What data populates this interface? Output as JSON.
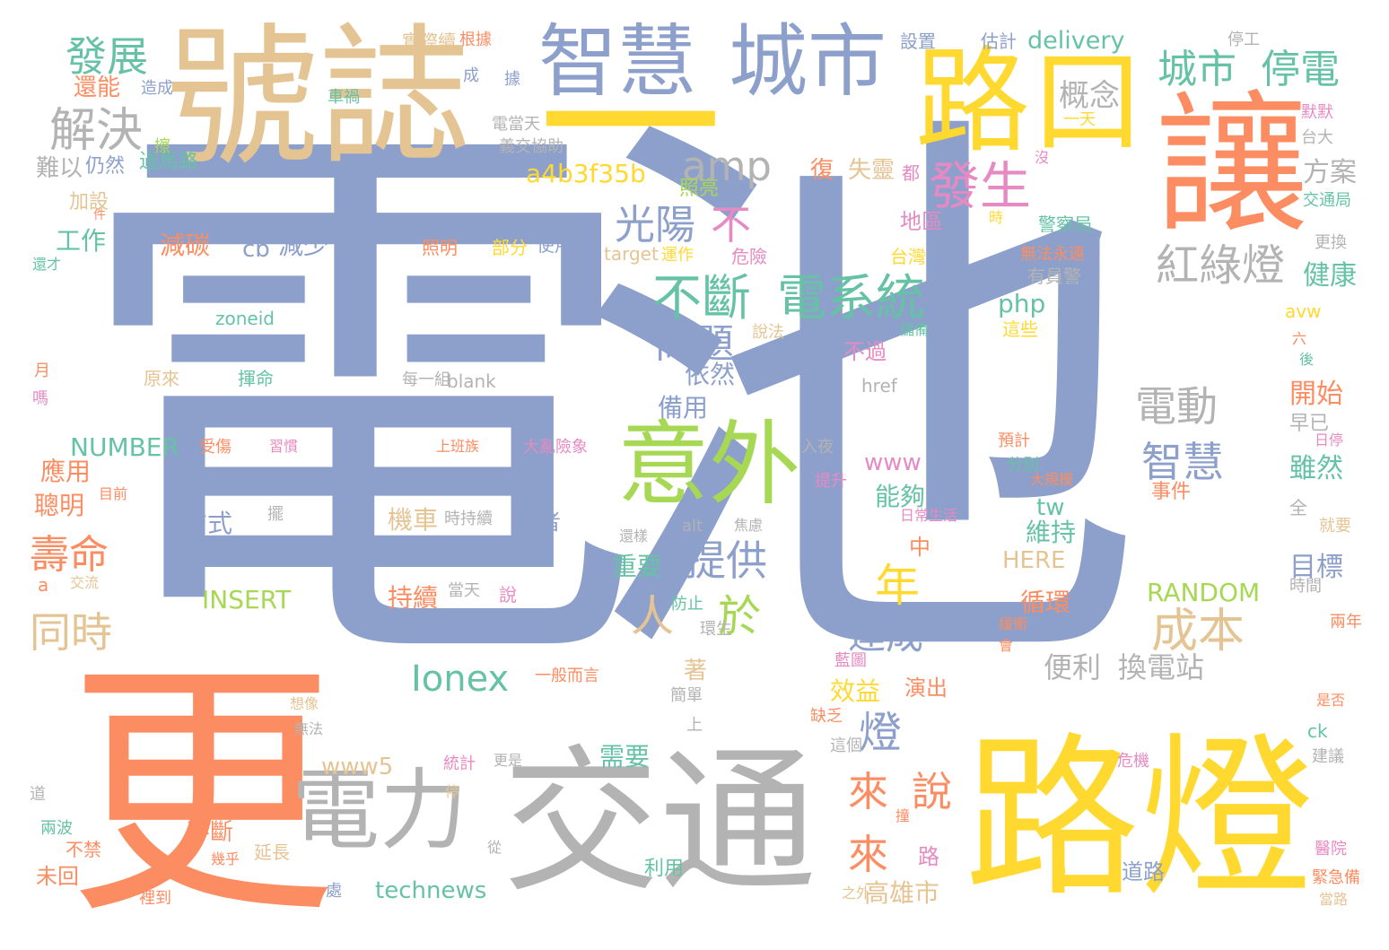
{
  "palette": {
    "blue": "#8da0cb",
    "orange": "#fc8d62",
    "green": "#66c2a5",
    "pink": "#e78ac3",
    "lime": "#a6d854",
    "yellow": "#ffd92f",
    "tan": "#e5c494",
    "gray": "#b3b3b3"
  },
  "words": [
    {
      "text": "電池",
      "color": "#8da0cb"
    },
    {
      "text": "更",
      "color": "#fc8d62"
    },
    {
      "text": "號誌",
      "color": "#e5c494"
    },
    {
      "text": "一",
      "color": "#ffd92f"
    },
    {
      "text": "路燈",
      "color": "#ffd92f"
    },
    {
      "text": "交通",
      "color": "#b3b3b3"
    },
    {
      "text": "讓",
      "color": "#fc8d62"
    },
    {
      "text": "智慧",
      "color": "#8da0cb"
    },
    {
      "text": "城市",
      "color": "#8da0cb"
    },
    {
      "text": "路口",
      "color": "#ffd92f"
    },
    {
      "text": "電力",
      "color": "#b3b3b3"
    },
    {
      "text": "意外",
      "color": "#a6d854"
    },
    {
      "text": "不斷",
      "color": "#66c2a5"
    },
    {
      "text": "電系統",
      "color": "#66c2a5"
    },
    {
      "text": "發生",
      "color": "#e78ac3"
    },
    {
      "text": "光陽",
      "color": "#8da0cb"
    },
    {
      "text": "不",
      "color": "#e78ac3"
    },
    {
      "text": "amp",
      "color": "#b3b3b3"
    },
    {
      "text": "城市",
      "color": "#66c2a5"
    },
    {
      "text": "停電",
      "color": "#66c2a5"
    },
    {
      "text": "紅綠燈",
      "color": "#b3b3b3"
    },
    {
      "text": "解決",
      "color": "#b3b3b3"
    },
    {
      "text": "發展",
      "color": "#66c2a5"
    },
    {
      "text": "概念",
      "color": "#b3b3b3"
    },
    {
      "text": "問題",
      "color": "#8da0cb"
    },
    {
      "text": "電動",
      "color": "#b3b3b3"
    },
    {
      "text": "智慧",
      "color": "#8da0cb"
    },
    {
      "text": "成本",
      "color": "#e5c494"
    },
    {
      "text": "年",
      "color": "#ffd92f"
    },
    {
      "text": "人",
      "color": "#e5c494"
    },
    {
      "text": "於",
      "color": "#a6d854"
    },
    {
      "text": "提供",
      "color": "#8da0cb"
    },
    {
      "text": "Ionex",
      "color": "#66c2a5"
    },
    {
      "text": "達成",
      "color": "#8da0cb"
    },
    {
      "text": "便利",
      "color": "#b3b3b3"
    },
    {
      "text": "換電站",
      "color": "#b3b3b3"
    },
    {
      "text": "壽命",
      "color": "#fc8d62"
    },
    {
      "text": "同時",
      "color": "#e5c494"
    },
    {
      "text": "燈",
      "color": "#8da0cb"
    },
    {
      "text": "來",
      "color": "#fc8d62"
    },
    {
      "text": "說",
      "color": "#fc8d62"
    },
    {
      "text": "來",
      "color": "#fc8d62"
    },
    {
      "text": "高雄市",
      "color": "#e5c494"
    },
    {
      "text": "方案",
      "color": "#b3b3b3"
    },
    {
      "text": "健康",
      "color": "#66c2a5"
    },
    {
      "text": "開始",
      "color": "#fc8d62"
    },
    {
      "text": "雖然",
      "color": "#66c2a5"
    },
    {
      "text": "目標",
      "color": "#8da0cb"
    },
    {
      "text": "a4b3f35b",
      "color": "#ffd92f"
    },
    {
      "text": "delivery",
      "color": "#66c2a5"
    },
    {
      "text": "NUMBER",
      "color": "#66c2a5"
    },
    {
      "text": "INSERT",
      "color": "#a6d854"
    },
    {
      "text": "RANDOM",
      "color": "#a6d854"
    },
    {
      "text": "technews",
      "color": "#66c2a5"
    },
    {
      "text": "www5",
      "color": "#e5c494"
    },
    {
      "text": "HERE",
      "color": "#e5c494"
    },
    {
      "text": "php",
      "color": "#66c2a5"
    },
    {
      "text": "www",
      "color": "#e78ac3"
    },
    {
      "text": "tw",
      "color": "#66c2a5"
    },
    {
      "text": "cb",
      "color": "#8da0cb"
    },
    {
      "text": "減碳",
      "color": "#fc8d62"
    },
    {
      "text": "減少",
      "color": "#8da0cb"
    },
    {
      "text": "工作",
      "color": "#66c2a5"
    },
    {
      "text": "應用",
      "color": "#fc8d62"
    },
    {
      "text": "聰明",
      "color": "#fc8d62"
    },
    {
      "text": "方式",
      "color": "#8da0cb"
    },
    {
      "text": "機車",
      "color": "#e5c494"
    },
    {
      "text": "持續",
      "color": "#fc8d62"
    },
    {
      "text": "重要",
      "color": "#66c2a5"
    },
    {
      "text": "依然",
      "color": "#8da0cb"
    },
    {
      "text": "備用",
      "color": "#8da0cb"
    },
    {
      "text": "能夠",
      "color": "#66c2a5"
    },
    {
      "text": "維持",
      "color": "#66c2a5"
    },
    {
      "text": "循環",
      "color": "#fc8d62"
    },
    {
      "text": "效益",
      "color": "#ffd92f"
    },
    {
      "text": "需要",
      "color": "#66c2a5"
    },
    {
      "text": "失靈",
      "color": "#e5c494"
    },
    {
      "text": "還能",
      "color": "#fc8d62"
    },
    {
      "text": "難以",
      "color": "#b3b3b3"
    },
    {
      "text": "仍然",
      "color": "#8da0cb"
    },
    {
      "text": "border",
      "color": "#e5c494"
    },
    {
      "text": "zoneid",
      "color": "#66c2a5"
    },
    {
      "text": "blank",
      "color": "#b3b3b3"
    },
    {
      "text": "target",
      "color": "#e5c494"
    },
    {
      "text": "危險",
      "color": "#e78ac3"
    },
    {
      "text": "照亮",
      "color": "#a6d854"
    },
    {
      "text": "照明",
      "color": "#fc8d62"
    },
    {
      "text": "部分",
      "color": "#ffd92f"
    },
    {
      "text": "使用者",
      "color": "#8da0cb"
    },
    {
      "text": "運作",
      "color": "#ffd92f"
    },
    {
      "text": "台灣",
      "color": "#ffd92f"
    },
    {
      "text": "警察局",
      "color": "#66c2a5"
    },
    {
      "text": "這些",
      "color": "#ffd92f"
    },
    {
      "text": "不過",
      "color": "#e78ac3"
    },
    {
      "text": "href",
      "color": "#b3b3b3"
    },
    {
      "text": "img",
      "color": "#66c2a5"
    },
    {
      "text": "src",
      "color": "#8da0cb"
    },
    {
      "text": "avw",
      "color": "#ffd92f"
    },
    {
      "text": "ck",
      "color": "#66c2a5"
    },
    {
      "text": "alt",
      "color": "#b3b3b3"
    },
    {
      "text": "n",
      "color": "#ffd92f"
    },
    {
      "text": "a",
      "color": "#fc8d62"
    },
    {
      "text": "實際續",
      "color": "#e5c494"
    },
    {
      "text": "過馬路",
      "color": "#66c2a5"
    },
    {
      "text": "未回",
      "color": "#fc8d62"
    },
    {
      "text": "根據",
      "color": "#fc8d62"
    },
    {
      "text": "設置",
      "color": "#8da0cb"
    },
    {
      "text": "估計",
      "color": "#8da0cb"
    },
    {
      "text": "停工",
      "color": "#b3b3b3"
    },
    {
      "text": "默默",
      "color": "#e78ac3"
    },
    {
      "text": "台大",
      "color": "#b3b3b3"
    },
    {
      "text": "交通局",
      "color": "#66c2a5"
    },
    {
      "text": "更換",
      "color": "#b3b3b3"
    },
    {
      "text": "都",
      "color": "#e78ac3"
    },
    {
      "text": "沒",
      "color": "#e78ac3"
    },
    {
      "text": "時",
      "color": "#ffd92f"
    },
    {
      "text": "復",
      "color": "#fc8d62"
    },
    {
      "text": "地區",
      "color": "#e78ac3"
    },
    {
      "text": "無法永遠",
      "color": "#fc8d62"
    },
    {
      "text": "有員警",
      "color": "#b3b3b3"
    },
    {
      "text": "說法",
      "color": "#e5c494"
    },
    {
      "text": "原來",
      "color": "#e5c494"
    },
    {
      "text": "揮命",
      "color": "#66c2a5"
    },
    {
      "text": "每一組",
      "color": "#b3b3b3"
    },
    {
      "text": "月",
      "color": "#fc8d62"
    },
    {
      "text": "嗎",
      "color": "#e78ac3"
    },
    {
      "text": "還才",
      "color": "#66c2a5"
    },
    {
      "text": "加設",
      "color": "#e5c494"
    },
    {
      "text": "件",
      "color": "#fc8d62"
    },
    {
      "text": "擦",
      "color": "#a6d854"
    },
    {
      "text": "成",
      "color": "#8da0cb"
    },
    {
      "text": "據",
      "color": "#8da0cb"
    },
    {
      "text": "造成",
      "color": "#8da0cb"
    },
    {
      "text": "車禍",
      "color": "#66c2a5"
    },
    {
      "text": "電當天",
      "color": "#b3b3b3"
    },
    {
      "text": "義交協助",
      "color": "#b3b3b3"
    },
    {
      "text": "受傷",
      "color": "#fc8d62"
    },
    {
      "text": "習慣",
      "color": "#e78ac3"
    },
    {
      "text": "上班族",
      "color": "#fc8d62"
    },
    {
      "text": "大亂險象",
      "color": "#e78ac3"
    },
    {
      "text": "入夜",
      "color": "#b3b3b3"
    },
    {
      "text": "提升",
      "color": "#e78ac3"
    },
    {
      "text": "預計",
      "color": "#fc8d62"
    },
    {
      "text": "大規模",
      "color": "#fc8d62"
    },
    {
      "text": "事件",
      "color": "#fc8d62"
    },
    {
      "text": "日停",
      "color": "#e78ac3"
    },
    {
      "text": "全",
      "color": "#b3b3b3"
    },
    {
      "text": "就要",
      "color": "#e5c494"
    },
    {
      "text": "時間",
      "color": "#b3b3b3"
    },
    {
      "text": "兩年",
      "color": "#fc8d62"
    },
    {
      "text": "是否",
      "color": "#fc8d62"
    },
    {
      "text": "建議",
      "color": "#b3b3b3"
    },
    {
      "text": "醫院",
      "color": "#e78ac3"
    },
    {
      "text": "緊急備",
      "color": "#fc8d62"
    },
    {
      "text": "當路",
      "color": "#e5c494"
    },
    {
      "text": "危機",
      "color": "#e78ac3"
    },
    {
      "text": "缺乏",
      "color": "#fc8d62"
    },
    {
      "text": "這個",
      "color": "#b3b3b3"
    },
    {
      "text": "上",
      "color": "#b3b3b3"
    },
    {
      "text": "簡單",
      "color": "#b3b3b3"
    },
    {
      "text": "著",
      "color": "#e5c494"
    },
    {
      "text": "演出",
      "color": "#fc8d62"
    },
    {
      "text": "藍圖",
      "color": "#e78ac3"
    },
    {
      "text": "環生",
      "color": "#b3b3b3"
    },
    {
      "text": "防止",
      "color": "#66c2a5"
    },
    {
      "text": "說",
      "color": "#e78ac3"
    },
    {
      "text": "當天",
      "color": "#b3b3b3"
    },
    {
      "text": "時持續",
      "color": "#b3b3b3"
    },
    {
      "text": "業者",
      "color": "#8da0cb"
    },
    {
      "text": "擺",
      "color": "#b3b3b3"
    },
    {
      "text": "還樣",
      "color": "#b3b3b3"
    },
    {
      "text": "焦慮",
      "color": "#b3b3b3"
    },
    {
      "text": "中",
      "color": "#fc8d62"
    },
    {
      "text": "日常生活",
      "color": "#e78ac3"
    },
    {
      "text": "儲備",
      "color": "#66c2a5"
    },
    {
      "text": "分別",
      "color": "#66c2a5"
    },
    {
      "text": "緩衝",
      "color": "#fc8d62"
    },
    {
      "text": "會",
      "color": "#fc8d62"
    },
    {
      "text": "六",
      "color": "#fc8d62"
    },
    {
      "text": "後",
      "color": "#66c2a5"
    },
    {
      "text": "早已",
      "color": "#b3b3b3"
    },
    {
      "text": "一天",
      "color": "#ffd92f"
    },
    {
      "text": "目前",
      "color": "#fc8d62"
    },
    {
      "text": "交流",
      "color": "#e5c494"
    },
    {
      "text": "一般而言",
      "color": "#fc8d62"
    },
    {
      "text": "想像",
      "color": "#e5c494"
    },
    {
      "text": "無法",
      "color": "#b3b3b3"
    },
    {
      "text": "更是",
      "color": "#b3b3b3"
    },
    {
      "text": "統計",
      "color": "#e78ac3"
    },
    {
      "text": "停",
      "color": "#e5c494"
    },
    {
      "text": "從",
      "color": "#b3b3b3"
    },
    {
      "text": "撞",
      "color": "#fc8d62"
    },
    {
      "text": "路",
      "color": "#e78ac3"
    },
    {
      "text": "道路",
      "color": "#8da0cb"
    },
    {
      "text": "之外",
      "color": "#e5c494"
    },
    {
      "text": "利用",
      "color": "#66c2a5"
    },
    {
      "text": "延長",
      "color": "#e5c494"
    },
    {
      "text": "幾乎",
      "color": "#fc8d62"
    },
    {
      "text": "處",
      "color": "#8da0cb"
    },
    {
      "text": "不斷",
      "color": "#fc8d62"
    },
    {
      "text": "不禁",
      "color": "#fc8d62"
    },
    {
      "text": "裡到",
      "color": "#fc8d62"
    },
    {
      "text": "兩波",
      "color": "#66c2a5"
    },
    {
      "text": "道",
      "color": "#b3b3b3"
    }
  ]
}
